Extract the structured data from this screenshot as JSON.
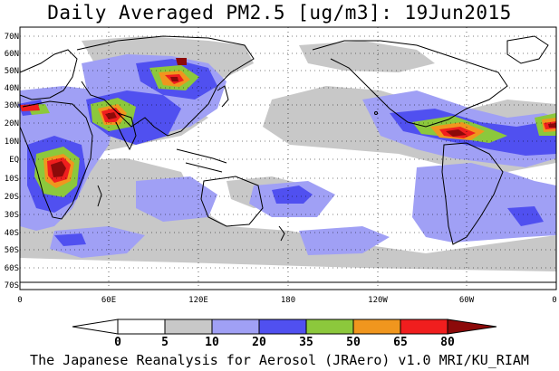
{
  "title": "Daily Averaged PM2.5 [ug/m3]: 19Jun2015",
  "footer": "The Japanese Reanalysis for Aerosol (JRAero) v1.0 MRI/KU_RIAM",
  "map": {
    "lat_labels": [
      "70N",
      "60N",
      "50N",
      "40N",
      "30N",
      "20N",
      "10N",
      "EQ",
      "10S",
      "20S",
      "30S",
      "40S",
      "50S",
      "60S",
      "70S"
    ],
    "lon_labels": [
      "0",
      "60E",
      "120E",
      "180",
      "120W",
      "60W",
      "0"
    ]
  },
  "colorbar": {
    "labels": [
      "0",
      "5",
      "10",
      "20",
      "35",
      "50",
      "65",
      "80"
    ],
    "colors": [
      "#ffffff",
      "#c8c8c8",
      "#a0a0f5",
      "#5050f0",
      "#8cc83c",
      "#f0961e",
      "#f01e1e",
      "#8c0a0a"
    ]
  },
  "palette": {
    "land": "#ffffff",
    "coast": "#000000",
    "gray": "#c8c8c8",
    "lightblue": "#a0a0f5",
    "blue": "#5050f0",
    "green": "#8cc83c",
    "orange": "#f0961e",
    "red": "#f01e1e",
    "darkred": "#8c0a0a"
  }
}
